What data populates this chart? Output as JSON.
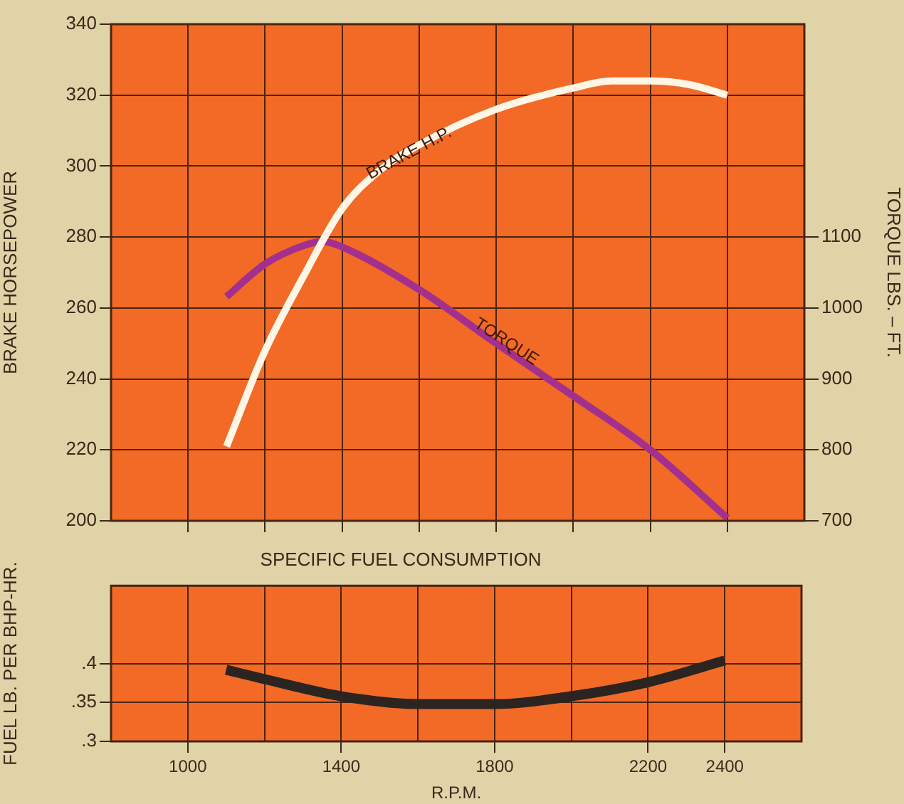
{
  "chart_data": [
    {
      "type": "line",
      "ylabel": "BRAKE HORSEPOWER",
      "y2label": "TORQUE LBS. – FT.",
      "xlim": [
        800,
        2600
      ],
      "xticks": [
        1000,
        1200,
        1400,
        1600,
        1800,
        2000,
        2200,
        2400
      ],
      "ylim": [
        200,
        340
      ],
      "yticks": [
        200,
        220,
        240,
        260,
        280,
        300,
        320,
        340
      ],
      "y2lim": [
        700,
        1400
      ],
      "y2ticks": [
        700,
        800,
        900,
        1000,
        1100
      ],
      "tick_labels": "y",
      "grid": true,
      "marker": "none",
      "line_style": "solid",
      "series": [
        {
          "color": "#fff6e6",
          "x": [
            1100,
            1200,
            1300,
            1400,
            1500,
            1600,
            1800,
            2000,
            2100,
            2200,
            2300,
            2400
          ],
          "values": [
            221,
            248,
            269,
            288,
            299,
            306,
            316,
            322,
            324,
            324,
            323,
            320
          ]
        },
        {
          "color": "#a3308c",
          "axis": "y2",
          "x": [
            1100,
            1200,
            1300,
            1350,
            1400,
            1600,
            1800,
            2000,
            2200,
            2400
          ],
          "values": [
            1016,
            1062,
            1088,
            1094,
            1086,
            1026,
            950,
            876,
            800,
            704
          ]
        }
      ],
      "annotations": [
        "BRAKE H.P.",
        "TORQUE"
      ]
    },
    {
      "type": "line",
      "title": "SPECIFIC FUEL CONSUMPTION",
      "xlabel": "R.P.M.",
      "ylabel": "FUEL LB. PER BHP-HR.",
      "xlim": [
        800,
        2600
      ],
      "xticks": [
        {
          "value": 800,
          "label": null
        },
        1000,
        {
          "value": 1200,
          "label": null
        },
        1400,
        {
          "value": 1600,
          "label": null
        },
        1800,
        {
          "value": 2000,
          "label": null
        },
        2200,
        2400,
        {
          "value": 2600,
          "label": null
        }
      ],
      "ylim": [
        0.3,
        0.5
      ],
      "yticks": [
        {
          "value": 0.3,
          "label": ".3"
        },
        {
          "value": 0.35,
          "label": ".35"
        },
        {
          "value": 0.4,
          "label": ".4"
        }
      ],
      "grid": true,
      "marker": "none",
      "line_style": "solid",
      "series": [
        {
          "color": "#2b2420",
          "x": [
            1100,
            1200,
            1400,
            1600,
            1800,
            2000,
            2200,
            2400
          ],
          "values": [
            0.392,
            0.38,
            0.358,
            0.348,
            0.348,
            0.358,
            0.376,
            0.404
          ]
        }
      ]
    }
  ]
}
